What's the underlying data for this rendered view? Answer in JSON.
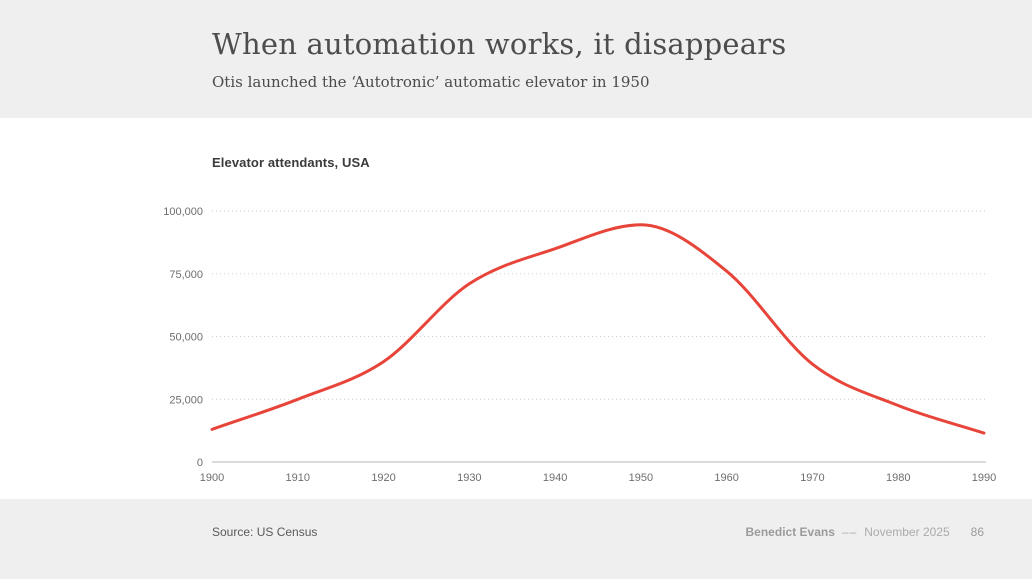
{
  "slide": {
    "title": "When automation works, it disappears",
    "subtitle": "Otis launched the ‘Autotronic’ automatic elevator in 1950"
  },
  "chart": {
    "label": "Elevator attendants, USA"
  },
  "chart_data": {
    "type": "line",
    "title": "Elevator attendants, USA",
    "series_name": "Elevator attendants",
    "x": [
      1900,
      1910,
      1920,
      1930,
      1940,
      1950,
      1960,
      1970,
      1980,
      1990
    ],
    "values": [
      13000,
      25000,
      40000,
      71000,
      85000,
      94500,
      76000,
      39000,
      22500,
      11500
    ],
    "xlabel": "",
    "ylabel": "",
    "xlim": [
      1900,
      1990
    ],
    "ylim": [
      0,
      100000
    ],
    "yticks": [
      0,
      25000,
      50000,
      75000,
      100000
    ],
    "ytick_labels": [
      "0",
      "25,000",
      "50,000",
      "75,000",
      "100,000"
    ],
    "xtick_labels": [
      "1900",
      "1910",
      "1920",
      "1930",
      "1940",
      "1950",
      "1960",
      "1970",
      "1980",
      "1990"
    ],
    "grid": "horizontal-dotted",
    "legend": "none",
    "line_color": "#e8453a",
    "grid_color": "#cdcdcd",
    "baseline_color": "#b5b5b5",
    "tick_text_color": "#6e6e6e"
  },
  "footer": {
    "source": "Source: US Census",
    "author": "Benedict Evans",
    "separator": "––",
    "date": "November 2025",
    "page": "86"
  },
  "colors": {
    "band": "#efefef",
    "accent": "#e8453a",
    "title_text": "#4d4d4d"
  }
}
